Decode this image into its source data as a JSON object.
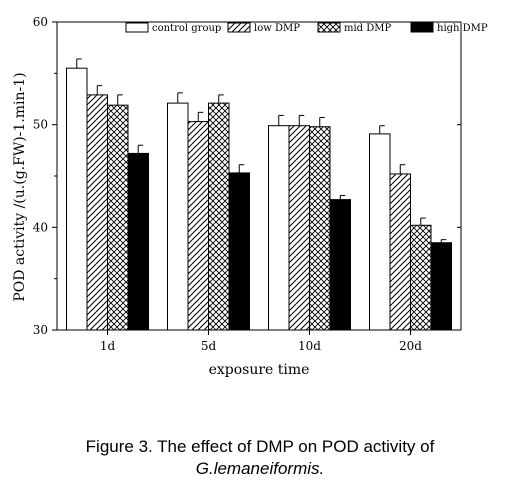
{
  "chart_data": {
    "type": "bar",
    "categories": [
      "1d",
      "5d",
      "10d",
      "20d"
    ],
    "series": [
      {
        "name": "control group",
        "values": [
          55.5,
          52.1,
          49.9,
          49.1
        ],
        "errors": [
          0.9,
          1.0,
          1.0,
          0.8
        ],
        "style": "white"
      },
      {
        "name": "low DMP",
        "values": [
          52.9,
          50.3,
          49.9,
          45.2
        ],
        "errors": [
          0.9,
          0.9,
          1.0,
          0.9
        ],
        "style": "hatch-diagonal"
      },
      {
        "name": "mid DMP",
        "values": [
          51.9,
          52.1,
          49.8,
          40.2
        ],
        "errors": [
          1.0,
          0.8,
          0.9,
          0.7
        ],
        "style": "hatch-cross"
      },
      {
        "name": "high DMP",
        "values": [
          47.2,
          45.3,
          42.7,
          38.5
        ],
        "errors": [
          0.8,
          0.8,
          0.4,
          0.3
        ],
        "style": "black"
      }
    ],
    "xlabel": "exposure time",
    "ylabel": "POD activity /(u.(g.FW)-1.min-1)",
    "ylim": [
      30,
      60
    ],
    "yticks": [
      "30",
      "40",
      "50",
      "60"
    ],
    "legend_position": "top",
    "grid": false
  },
  "caption": {
    "line1": "Figure 3. The effect of DMP on POD activity of",
    "line2": "G.lemaneiformis."
  }
}
